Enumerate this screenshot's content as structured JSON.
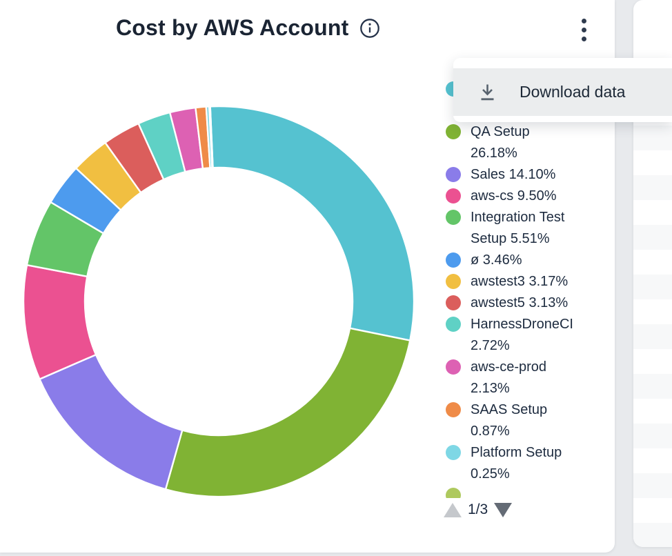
{
  "card": {
    "title": "Cost by AWS Account",
    "pagination_label": "1/3"
  },
  "menu": {
    "download_label": "Download data"
  },
  "colors": {
    "background": "#e8eaed",
    "card": "#ffffff",
    "title_text": "#1a2433",
    "legend_text": "#1d2b3f",
    "menu_item_bg": "#ebedee",
    "stripe": "#f7f8f9"
  },
  "chart_data": {
    "type": "donut",
    "title": "Cost by AWS Account",
    "legend_position": "right",
    "legend_pages": "1/3",
    "start_angle_deg": -2.5,
    "inner_radius_ratio": 0.685,
    "series": [
      {
        "label": "",
        "pct": 28.9,
        "pct_display": "",
        "color": "#55c2d0",
        "legend_lines": [
          "",
          ""
        ],
        "note": "legend text hidden behind open menu"
      },
      {
        "label": "QA Setup",
        "pct": 26.18,
        "pct_display": "26.18%",
        "color": "#80b334",
        "legend_lines": [
          "QA Setup",
          "26.18%"
        ]
      },
      {
        "label": "Sales",
        "pct": 14.1,
        "pct_display": "14.10%",
        "color": "#8a7ce9",
        "legend_lines": [
          "Sales 14.10%"
        ]
      },
      {
        "label": "aws-cs",
        "pct": 9.5,
        "pct_display": "9.50%",
        "color": "#eb5191",
        "legend_lines": [
          "aws-cs 9.50%"
        ]
      },
      {
        "label": "Integration Test Setup",
        "pct": 5.51,
        "pct_display": "5.51%",
        "color": "#63c568",
        "legend_lines": [
          "Integration Test",
          "Setup 5.51%"
        ]
      },
      {
        "label": "ø",
        "pct": 3.46,
        "pct_display": "3.46%",
        "color": "#4d9bee",
        "legend_lines": [
          "ø 3.46%"
        ]
      },
      {
        "label": "awstest3",
        "pct": 3.17,
        "pct_display": "3.17%",
        "color": "#f1bf41",
        "legend_lines": [
          "awstest3 3.17%"
        ]
      },
      {
        "label": "awstest5",
        "pct": 3.13,
        "pct_display": "3.13%",
        "color": "#db5e5c",
        "legend_lines": [
          "awstest5 3.13%"
        ]
      },
      {
        "label": "HarnessDroneCI",
        "pct": 2.72,
        "pct_display": "2.72%",
        "color": "#5fd1c5",
        "legend_lines": [
          "HarnessDroneCI",
          "2.72%"
        ]
      },
      {
        "label": "aws-ce-prod",
        "pct": 2.13,
        "pct_display": "2.13%",
        "color": "#dd61b3",
        "legend_lines": [
          "aws-ce-prod",
          "2.13%"
        ]
      },
      {
        "label": "SAAS Setup",
        "pct": 0.87,
        "pct_display": "0.87%",
        "color": "#ef8b48",
        "legend_lines": [
          "SAAS Setup",
          "0.87%"
        ]
      },
      {
        "label": "Platform Setup",
        "pct": 0.25,
        "pct_display": "0.25%",
        "color": "#7ed7e5",
        "legend_lines": [
          "Platform Setup",
          "0.25%"
        ]
      },
      {
        "label": "",
        "pct": 0.08,
        "pct_display": "",
        "color": "#aec95e",
        "legend_lines": [
          ""
        ],
        "note": "next legend page item, bullet partially visible"
      }
    ]
  }
}
